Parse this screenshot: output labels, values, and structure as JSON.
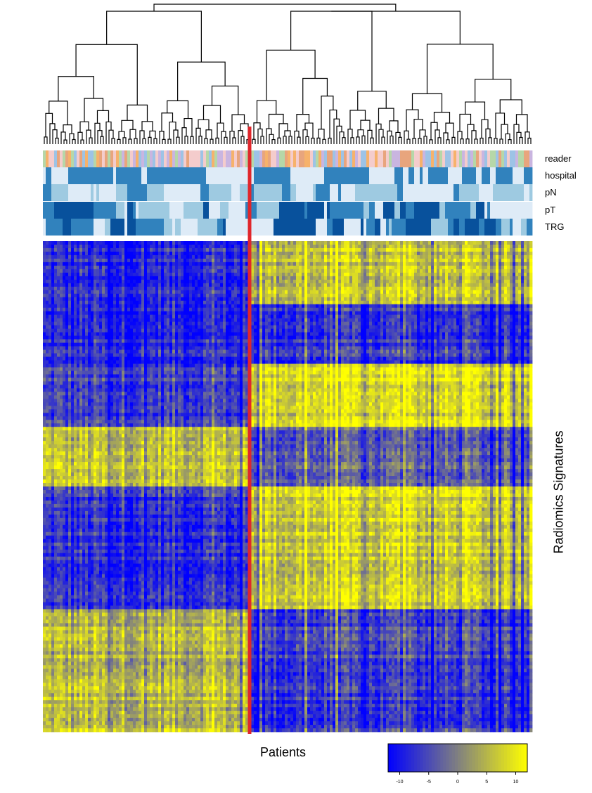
{
  "chart_data": {
    "type": "heatmap",
    "title": "",
    "xlabel": "Patients",
    "ylabel": "Radiomics Signatures",
    "annotation_tracks": [
      "reader",
      "hospital",
      "pN",
      "pT",
      "TRG"
    ],
    "dendrogram": "top (hierarchical clustering of patients)",
    "divider": "vertical red line separating two patient clusters",
    "colorbar": {
      "ticks": [
        "-10",
        "-5",
        "0",
        "5",
        "10"
      ],
      "tick_values": [
        -10,
        -5,
        0,
        5,
        10
      ],
      "range": [
        -12,
        12
      ],
      "low_color": "#0000ff",
      "mid_color": "#808080",
      "high_color": "#ffff00"
    },
    "clusters": [
      {
        "values": [
          -8,
          -8,
          -6,
          6,
          -7,
          -8,
          5,
          6
        ]
      },
      {
        "values": [
          6,
          -7,
          8,
          -4,
          7,
          6,
          -6,
          -7
        ]
      }
    ],
    "annotation_palette": {
      "light": "#deebf7",
      "mid": "#9ecae1",
      "strong": "#3182bd",
      "dark": "#08519c",
      "reader_colors": [
        "#e8a57d",
        "#9dc3e6",
        "#f4cccc",
        "#c9b5e0",
        "#b6d7a8",
        "#f6b26b"
      ]
    },
    "divider_color": "#e0262b"
  }
}
